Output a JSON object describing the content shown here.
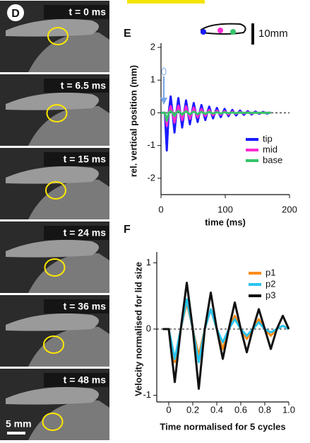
{
  "photos": {
    "label": "D",
    "frames": [
      "t = 0 ms",
      "t = 6.5 ms",
      "t = 15 ms",
      "t = 24 ms",
      "t = 36 ms",
      "t = 48 ms"
    ],
    "scale": "5 mm"
  },
  "chart_data": [
    {
      "type": "line",
      "panel_label": "E",
      "scale_label": "10mm",
      "x_label": "time (ms)",
      "y_label": "rel. vertical position (mm)",
      "x": [
        0,
        3,
        6,
        9,
        12,
        15,
        18,
        21,
        24,
        27,
        30,
        33,
        36,
        39,
        42,
        45,
        48,
        51,
        54,
        57,
        60,
        63,
        66,
        69,
        72,
        75,
        78,
        81,
        84,
        87,
        90,
        93,
        96,
        99,
        102,
        105,
        108,
        111,
        114,
        117,
        120,
        123,
        126,
        129,
        132,
        135,
        138,
        141,
        144,
        147,
        150,
        153,
        156,
        159,
        162,
        165,
        168,
        171
      ],
      "series": [
        {
          "name": "tip",
          "color": "#1a1aff",
          "values": [
            0,
            0,
            0,
            -1.15,
            0,
            0.5,
            0,
            -0.6,
            0,
            0.45,
            0,
            -0.45,
            0,
            0.38,
            0,
            -0.35,
            0,
            0.3,
            0,
            -0.28,
            0,
            0.24,
            0,
            -0.22,
            0,
            0.19,
            0,
            -0.17,
            0,
            0.15,
            0,
            -0.13,
            0,
            0.12,
            0,
            -0.1,
            0,
            0.09,
            0,
            -0.08,
            0,
            0.07,
            0,
            -0.06,
            0,
            0.05,
            0,
            -0.05,
            0,
            0.04,
            0,
            -0.03,
            0,
            0.03,
            0,
            -0.02,
            0,
            0
          ]
        },
        {
          "name": "mid",
          "color": "#ff2ad4",
          "values": [
            0,
            0,
            0,
            -0.4,
            0,
            0.2,
            0,
            -0.3,
            0,
            0.22,
            0,
            -0.22,
            0,
            0.2,
            0,
            -0.18,
            0,
            0.16,
            0,
            -0.14,
            0,
            0.12,
            0,
            -0.1,
            0,
            0.09,
            0,
            -0.08,
            0,
            0.07,
            0,
            -0.06,
            0,
            0.05,
            0,
            -0.05,
            0,
            0.04,
            0,
            -0.03,
            0,
            0.03,
            0,
            -0.02,
            0,
            0.02,
            0,
            -0.02,
            0,
            0.01,
            0,
            -0.01,
            0,
            0.01,
            0,
            0,
            0,
            0
          ]
        },
        {
          "name": "base",
          "color": "#33c46a",
          "values": [
            0,
            0,
            0,
            -0.25,
            0,
            0.05,
            0,
            -0.1,
            0,
            0.06,
            0,
            -0.06,
            0,
            0.05,
            0,
            -0.05,
            0,
            0.04,
            0,
            -0.04,
            0,
            0.03,
            0,
            -0.03,
            0,
            0.03,
            0,
            -0.02,
            0,
            0.02,
            0,
            -0.02,
            0,
            0.02,
            0,
            -0.01,
            0,
            0.01,
            0,
            -0.01,
            0,
            0.01,
            0,
            0,
            0,
            0,
            0,
            0,
            0,
            0,
            0,
            0,
            0,
            0,
            0,
            0,
            0,
            0
          ]
        }
      ],
      "xlim": [
        0,
        200
      ],
      "xticks": [
        0,
        100,
        200
      ],
      "ylim": [
        -2.5,
        2
      ],
      "yticks": [
        -2,
        -1,
        0,
        1,
        2
      ]
    },
    {
      "type": "line",
      "panel_label": "F",
      "x_label": "Time normalised for 5 cycles",
      "y_label": "Velocity normalised for lid size",
      "x": [
        -0.05,
        0,
        0.05,
        0.1,
        0.15,
        0.2,
        0.25,
        0.3,
        0.35,
        0.4,
        0.45,
        0.5,
        0.55,
        0.6,
        0.65,
        0.7,
        0.75,
        0.8,
        0.85,
        0.9,
        0.95,
        1.0
      ],
      "series": [
        {
          "name": "p1",
          "color": "#ff8c1a",
          "values": [
            0,
            0,
            -0.5,
            0,
            0.4,
            0,
            -0.4,
            0,
            0.3,
            0,
            -0.3,
            0,
            0.2,
            0,
            -0.15,
            0,
            0.15,
            0,
            -0.1,
            0,
            0.05,
            0
          ]
        },
        {
          "name": "p2",
          "color": "#29c5f0",
          "values": [
            0,
            0,
            -0.45,
            0,
            0.45,
            0,
            -0.5,
            0,
            0.3,
            0,
            -0.2,
            0,
            0.15,
            0,
            -0.1,
            0,
            0.1,
            0,
            -0.05,
            0,
            0.05,
            0
          ]
        },
        {
          "name": "p3",
          "color": "#111111",
          "values": [
            0,
            0,
            -0.8,
            0,
            0.7,
            0,
            -0.9,
            0,
            0.55,
            0,
            -0.45,
            0,
            0.4,
            0,
            -0.35,
            0,
            0.3,
            0,
            -0.3,
            0,
            0.2,
            0
          ]
        }
      ],
      "xlim": [
        -0.1,
        1.0
      ],
      "xticks": [
        0,
        0.2,
        0.4,
        0.6,
        0.8,
        {
          "value": 1,
          "label": "1.0"
        }
      ],
      "ylim": [
        -1.1,
        1.1
      ],
      "yticks": [
        -1,
        0,
        1
      ]
    }
  ]
}
